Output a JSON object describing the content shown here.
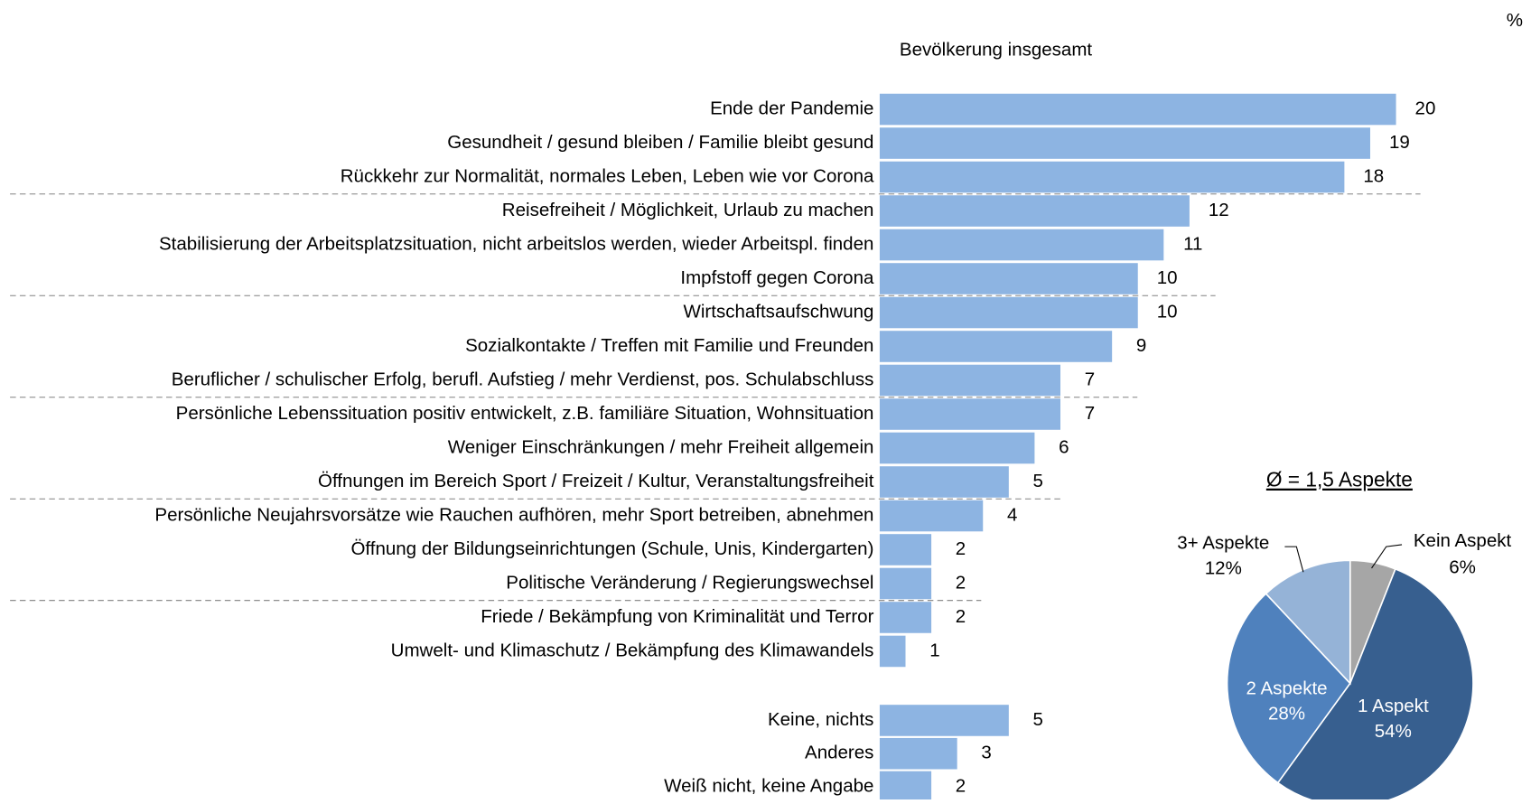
{
  "chart_data": [
    {
      "type": "barh",
      "unit": "%",
      "subtitle": "Bevölkerung insgesamt",
      "color": "#8db4e2",
      "categories": [
        "Ende der Pandemie",
        "Gesundheit / gesund bleiben / Familie bleibt gesund",
        "Rückkehr zur Normalität, normales Leben, Leben wie vor Corona",
        "Reisefreiheit / Möglichkeit, Urlaub zu machen",
        "Stabilisierung der Arbeitsplatzsituation, nicht arbeitslos werden, wieder Arbeitspl. finden",
        "Impfstoff gegen Corona",
        "Wirtschaftsaufschwung",
        "Sozialkontakte / Treffen mit Familie und Freunden",
        "Beruflicher / schulischer Erfolg, berufl. Aufstieg / mehr Verdienst, pos. Schulabschluss",
        "Persönliche Lebenssituation positiv entwickelt, z.B. familiäre Situation, Wohnsituation",
        "Weniger Einschränkungen / mehr Freiheit allgemein",
        "Öffnungen im Bereich Sport / Freizeit / Kultur, Veranstaltungsfreiheit",
        "Persönliche Neujahrsvorsätze wie Rauchen aufhören, mehr Sport betreiben, abnehmen",
        "Öffnung der Bildungseinrichtungen (Schule, Unis, Kindergarten)",
        "Politische Veränderung / Regierungswechsel",
        "Friede / Bekämpfung von Kriminalität und Terror",
        "Umwelt- und Klimaschutz / Bekämpfung des Klimawandels",
        "Keine, nichts",
        "Anderes",
        "Weiß nicht, keine Angabe"
      ],
      "values": [
        20,
        19,
        18,
        12,
        11,
        10,
        10,
        9,
        7,
        7,
        6,
        5,
        4,
        2,
        2,
        2,
        1,
        5,
        3,
        2
      ]
    },
    {
      "type": "pie",
      "title": "Ø = 1,5 Aspekte",
      "categories": [
        "Kein Aspekt",
        "1 Aspekt",
        "2 Aspekte",
        "3+ Aspekte"
      ],
      "values": [
        6,
        54,
        28,
        12
      ],
      "value_labels": [
        "6%",
        "54%",
        "28%",
        "12%"
      ],
      "colors": [
        "#a6a6a6",
        "#375f8f",
        "#4f81bd",
        "#95b3d7"
      ]
    }
  ]
}
